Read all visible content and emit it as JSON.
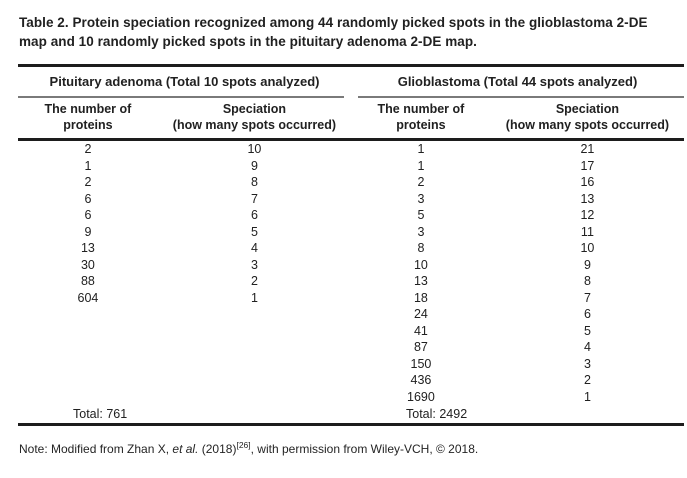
{
  "title": "Table 2. Protein speciation recognized among 44 randomly picked spots in the glioblastoma 2-DE map and 10 randomly picked spots in the pituitary adenoma 2-DE map.",
  "table": {
    "groups": [
      {
        "header": "Pituitary adenoma (Total 10 spots analyzed)",
        "columns": [
          {
            "line1": "The number of",
            "line2": "proteins"
          },
          {
            "line1": "Speciation",
            "line2": "(how many spots occurred)"
          }
        ],
        "rows": [
          [
            "2",
            "10"
          ],
          [
            "1",
            "9"
          ],
          [
            "2",
            "8"
          ],
          [
            "6",
            "7"
          ],
          [
            "6",
            "6"
          ],
          [
            "9",
            "5"
          ],
          [
            "13",
            "4"
          ],
          [
            "30",
            "3"
          ],
          [
            "88",
            "2"
          ],
          [
            "604",
            "1"
          ]
        ],
        "total": "Total: 761"
      },
      {
        "header": "Glioblastoma (Total 44 spots analyzed)",
        "columns": [
          {
            "line1": "The number of",
            "line2": "proteins"
          },
          {
            "line1": "Speciation",
            "line2": "(how many spots occurred)"
          }
        ],
        "rows": [
          [
            "1",
            "21"
          ],
          [
            "1",
            "17"
          ],
          [
            "2",
            "16"
          ],
          [
            "3",
            "13"
          ],
          [
            "5",
            "12"
          ],
          [
            "3",
            "11"
          ],
          [
            "8",
            "10"
          ],
          [
            "10",
            "9"
          ],
          [
            "13",
            "8"
          ],
          [
            "18",
            "7"
          ],
          [
            "24",
            "6"
          ],
          [
            "41",
            "5"
          ],
          [
            "87",
            "4"
          ],
          [
            "150",
            "3"
          ],
          [
            "436",
            "2"
          ],
          [
            "1690",
            "1"
          ]
        ],
        "total": "Total: 2492"
      }
    ]
  },
  "note": {
    "prefix": "Note: Modified from Zhan X, ",
    "et_al": "et al.",
    "mid": " (2018)",
    "ref": "[26]",
    "suffix": ", with permission from Wiley-VCH, © 2018."
  },
  "colors": {
    "text": "#212121",
    "thick_rule": "#1d1d1d",
    "thin_rule": "#7a7a7a",
    "background": "#ffffff"
  }
}
